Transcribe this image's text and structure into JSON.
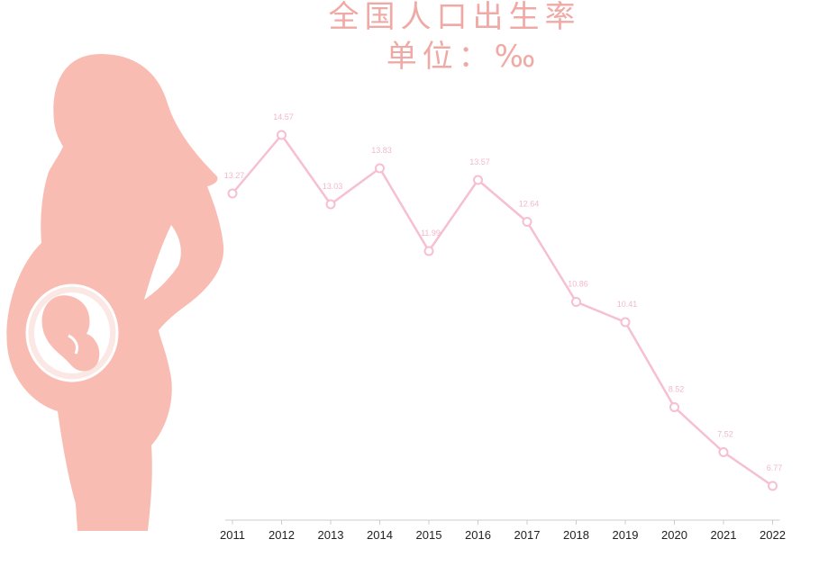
{
  "page": {
    "title_line1": "全国人口出生率",
    "title_line2": "单位：‰"
  },
  "colors": {
    "title": "#f0aaa5",
    "line": "#f6bfd2",
    "silhouette": "#f9bcb3",
    "data_label": "#f2b8cc"
  },
  "illustration": {
    "icon": "pregnant-woman-silhouette-icon"
  },
  "chart_data": {
    "type": "line",
    "title": "全国人口出生率",
    "subtitle": "单位：‰",
    "categories": [
      "2011",
      "2012",
      "2013",
      "2014",
      "2015",
      "2016",
      "2017",
      "2018",
      "2019",
      "2020",
      "2021",
      "2022"
    ],
    "values": [
      13.27,
      14.57,
      13.03,
      13.83,
      11.99,
      13.57,
      12.64,
      10.86,
      10.41,
      8.52,
      7.52,
      6.77
    ],
    "data_labels": [
      "13.27",
      "14.57",
      "13.03",
      "13.83",
      "11.99",
      "13.57",
      "12.64",
      "10.86",
      "10.41",
      "8.52",
      "7.52",
      "6.77"
    ],
    "xlabel": "",
    "ylabel": "",
    "grid": false,
    "legend": "none"
  }
}
